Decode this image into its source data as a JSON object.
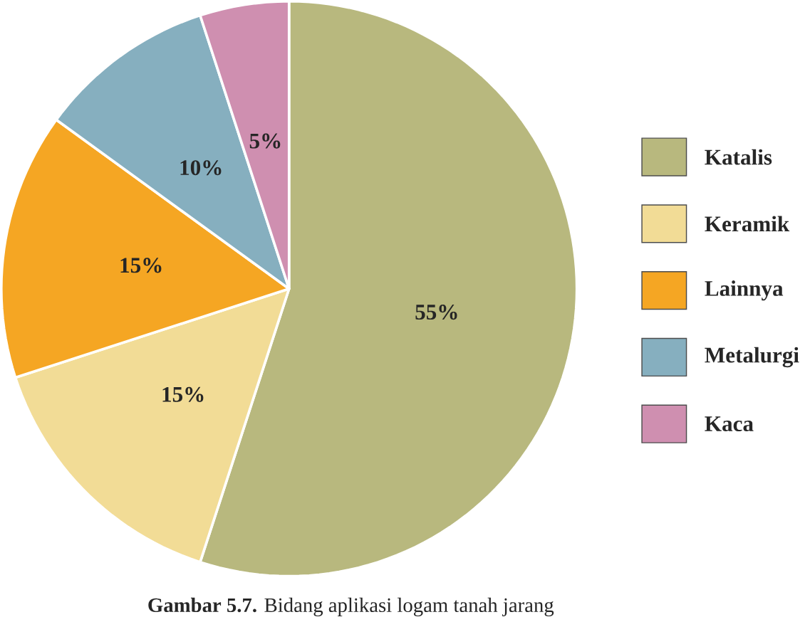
{
  "chart_data": {
    "type": "pie",
    "categories": [
      "Katalis",
      "Keramik",
      "Lainnya",
      "Metalurgi",
      "Kaca"
    ],
    "values": [
      55,
      15,
      15,
      10,
      5
    ],
    "colors": [
      "#b8b87e",
      "#f2dc96",
      "#f5a623",
      "#86afbf",
      "#cf8fb0"
    ],
    "value_labels": [
      "55%",
      "15%",
      "15%",
      "10%",
      "5%"
    ],
    "legend": "right",
    "annotations": [
      "**Gambar 5.7.** Bidang aplikasi logam tanah jarang"
    ]
  }
}
